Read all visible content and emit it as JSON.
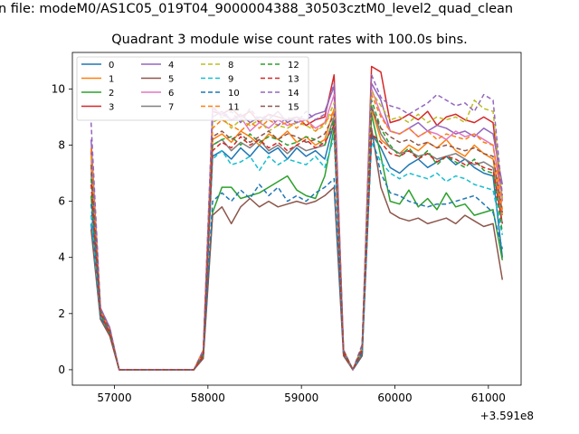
{
  "chart_data": {
    "type": "line",
    "title_file": "n file: modeM0/AS1C05_019T04_9000004388_30503cztM0_level2_quad_clean",
    "title": "Quadrant 3 module wise count rates with 100.0s bins.",
    "xlabel": "",
    "ylabel": "",
    "x_offset_label": "+3.591e8",
    "xlim": [
      56550,
      61350
    ],
    "ylim": [
      -0.55,
      11.3
    ],
    "xticks": [
      57000,
      58000,
      59000,
      60000,
      61000
    ],
    "xtick_labels": [
      "57000",
      "58000",
      "59000",
      "60000",
      "61000"
    ],
    "yticks": [
      0,
      2,
      4,
      6,
      8,
      10
    ],
    "ytick_labels": [
      "0",
      "2",
      "4",
      "6",
      "8",
      "10"
    ],
    "grid": false,
    "legend_position": "top-left",
    "legend_columns": 4,
    "palette": [
      "#1f77b4",
      "#ff7f0e",
      "#2ca02c",
      "#d62728",
      "#9467bd",
      "#8c564b",
      "#e377c2",
      "#7f7f7f",
      "#bcbd22",
      "#17becf"
    ],
    "x": [
      56750,
      56850,
      56950,
      57050,
      57150,
      57250,
      57350,
      57450,
      57550,
      57650,
      57750,
      57850,
      57950,
      58050,
      58150,
      58250,
      58350,
      58450,
      58550,
      58650,
      58750,
      58850,
      58950,
      59050,
      59150,
      59250,
      59350,
      59450,
      59550,
      59650,
      59750,
      59850,
      59950,
      60050,
      60150,
      60250,
      60350,
      60450,
      60550,
      60650,
      60750,
      60850,
      60950,
      61050,
      61150
    ],
    "series": [
      {
        "name": "0",
        "values": [
          5.2,
          2.0,
          1.3,
          0,
          0,
          0,
          0,
          0,
          0,
          0,
          0,
          0,
          0.5,
          7.6,
          7.8,
          7.5,
          7.9,
          7.6,
          8.0,
          7.7,
          7.9,
          7.5,
          7.9,
          7.6,
          7.8,
          7.5,
          8.8,
          0.6,
          0,
          0.5,
          8.4,
          7.9,
          7.2,
          7.0,
          7.3,
          7.5,
          7.2,
          7.4,
          7.6,
          7.3,
          7.5,
          7.2,
          7.0,
          6.9,
          4.0
        ]
      },
      {
        "name": "1",
        "values": [
          7.2,
          2.1,
          1.4,
          0,
          0,
          0,
          0,
          0,
          0,
          0,
          0,
          0,
          0.7,
          8.2,
          8.4,
          8.1,
          8.5,
          8.3,
          8.0,
          8.4,
          8.2,
          8.5,
          8.1,
          8.3,
          8.0,
          8.2,
          9.3,
          0.7,
          0,
          0.8,
          9.3,
          8.2,
          7.9,
          7.7,
          8.0,
          7.8,
          8.1,
          7.9,
          8.2,
          7.8,
          7.6,
          8.0,
          7.7,
          7.5,
          5.5
        ]
      },
      {
        "name": "2",
        "values": [
          6.2,
          1.8,
          1.3,
          0,
          0,
          0,
          0,
          0,
          0,
          0,
          0,
          0,
          0.5,
          5.6,
          6.5,
          6.5,
          6.1,
          6.2,
          6.3,
          6.5,
          6.7,
          6.9,
          6.4,
          6.2,
          6.1,
          6.9,
          8.6,
          0.6,
          0,
          0.6,
          9.1,
          7.6,
          6.0,
          5.9,
          6.4,
          5.8,
          6.1,
          5.7,
          6.3,
          5.8,
          5.9,
          5.5,
          5.6,
          5.7,
          3.9
        ]
      },
      {
        "name": "3",
        "values": [
          7.8,
          2.2,
          1.4,
          0,
          0,
          0,
          0,
          0,
          0,
          0,
          0,
          0,
          0.6,
          9.2,
          9.1,
          9.3,
          9.0,
          9.2,
          8.8,
          9.1,
          9.0,
          8.9,
          9.0,
          8.7,
          8.9,
          9.0,
          10.5,
          0.7,
          0,
          0.8,
          10.8,
          10.6,
          8.8,
          8.9,
          9.1,
          8.9,
          9.2,
          8.7,
          9.0,
          9.1,
          8.9,
          8.8,
          9.0,
          8.8,
          6.0
        ]
      },
      {
        "name": "4",
        "values": [
          8.2,
          2.2,
          1.5,
          0,
          0,
          0,
          0,
          0,
          0,
          0,
          0,
          0,
          0.6,
          9.0,
          9.2,
          8.9,
          9.1,
          8.8,
          9.0,
          8.9,
          9.2,
          8.8,
          9.0,
          8.9,
          9.1,
          9.2,
          10.1,
          0.7,
          0,
          0.8,
          10.2,
          9.6,
          8.5,
          8.4,
          8.6,
          8.8,
          8.5,
          8.7,
          8.6,
          8.4,
          8.5,
          8.3,
          8.6,
          8.4,
          6.6
        ]
      },
      {
        "name": "5",
        "values": [
          5.0,
          1.8,
          1.2,
          0,
          0,
          0,
          0,
          0,
          0,
          0,
          0,
          0,
          0.4,
          5.5,
          5.8,
          5.2,
          5.8,
          6.1,
          5.8,
          6.0,
          5.8,
          5.9,
          6.0,
          5.9,
          6.0,
          6.2,
          6.5,
          0.5,
          0,
          0.5,
          8.6,
          6.5,
          5.6,
          5.4,
          5.3,
          5.4,
          5.2,
          5.3,
          5.4,
          5.2,
          5.5,
          5.3,
          5.1,
          5.2,
          3.2
        ]
      },
      {
        "name": "6",
        "values": [
          7.5,
          2.0,
          1.4,
          0,
          0,
          0,
          0,
          0,
          0,
          0,
          0,
          0,
          0.6,
          9.3,
          9.1,
          8.9,
          9.0,
          8.5,
          8.8,
          8.6,
          8.9,
          8.7,
          8.8,
          8.9,
          8.6,
          8.8,
          9.8,
          0.6,
          0,
          0.7,
          10.0,
          9.1,
          8.5,
          8.4,
          8.6,
          8.3,
          8.5,
          8.4,
          8.2,
          8.5,
          8.3,
          8.4,
          8.2,
          8.0,
          6.0
        ]
      },
      {
        "name": "7",
        "values": [
          7.0,
          2.0,
          1.4,
          0,
          0,
          0,
          0,
          0,
          0,
          0,
          0,
          0,
          0.5,
          8.0,
          8.2,
          7.8,
          8.1,
          7.9,
          8.2,
          7.8,
          8.0,
          7.7,
          8.0,
          7.8,
          7.9,
          8.0,
          9.0,
          0.6,
          0,
          0.7,
          9.4,
          8.4,
          7.9,
          7.7,
          7.8,
          7.6,
          7.7,
          7.5,
          7.6,
          7.7,
          7.5,
          7.3,
          7.4,
          7.2,
          5.2
        ]
      },
      {
        "name": "8",
        "values": [
          7.6,
          2.1,
          1.4,
          0,
          0,
          0,
          0,
          0,
          0,
          0,
          0,
          0,
          0.6,
          8.8,
          9.0,
          8.6,
          8.9,
          8.7,
          8.9,
          8.5,
          8.7,
          8.6,
          8.8,
          8.7,
          8.5,
          8.7,
          9.5,
          0.7,
          0,
          0.8,
          9.9,
          9.4,
          8.9,
          9.0,
          8.8,
          9.1,
          8.8,
          9.0,
          8.9,
          9.0,
          8.8,
          9.6,
          9.3,
          9.2,
          6.1
        ]
      },
      {
        "name": "9",
        "values": [
          5.5,
          1.9,
          1.3,
          0,
          0,
          0,
          0,
          0,
          0,
          0,
          0,
          0,
          0.5,
          7.5,
          7.8,
          7.3,
          7.4,
          7.6,
          7.1,
          7.6,
          7.3,
          7.5,
          7.4,
          7.3,
          7.6,
          7.2,
          8.3,
          0.6,
          0,
          0.6,
          8.1,
          7.4,
          7.0,
          6.8,
          7.0,
          6.9,
          6.8,
          7.0,
          6.7,
          6.9,
          6.8,
          6.6,
          6.5,
          6.4,
          4.8
        ]
      },
      {
        "name": "10",
        "values": [
          5.9,
          1.9,
          1.3,
          0,
          0,
          0,
          0,
          0,
          0,
          0,
          0,
          0,
          0.5,
          6.0,
          6.3,
          6.0,
          6.4,
          6.1,
          6.6,
          6.2,
          6.5,
          6.0,
          6.2,
          6.0,
          6.3,
          6.5,
          6.8,
          0.6,
          0,
          0.6,
          8.4,
          7.0,
          6.3,
          6.2,
          6.0,
          5.9,
          5.8,
          5.9,
          5.9,
          6.0,
          6.1,
          6.2,
          5.9,
          5.6,
          4.3
        ]
      },
      {
        "name": "11",
        "values": [
          7.9,
          2.1,
          1.4,
          0,
          0,
          0,
          0,
          0,
          0,
          0,
          0,
          0,
          0.7,
          8.6,
          8.9,
          8.7,
          8.5,
          8.8,
          8.6,
          8.9,
          8.7,
          8.8,
          8.6,
          8.9,
          8.5,
          8.8,
          9.2,
          0.7,
          0,
          0.8,
          9.8,
          9.0,
          8.5,
          8.4,
          8.6,
          8.3,
          8.5,
          8.2,
          8.4,
          8.3,
          8.2,
          8.4,
          8.1,
          8.0,
          5.7
        ]
      },
      {
        "name": "12",
        "values": [
          6.8,
          2.0,
          1.3,
          0,
          0,
          0,
          0,
          0,
          0,
          0,
          0,
          0,
          0.5,
          8.0,
          8.2,
          8.3,
          8.0,
          8.4,
          8.1,
          8.3,
          8.2,
          8.0,
          8.1,
          8.3,
          8.2,
          8.0,
          8.9,
          0.6,
          0,
          0.7,
          9.6,
          8.6,
          8.0,
          7.6,
          7.9,
          7.5,
          7.8,
          7.3,
          7.6,
          7.4,
          7.2,
          7.5,
          7.1,
          7.0,
          4.9
        ]
      },
      {
        "name": "13",
        "values": [
          6.6,
          2.0,
          1.3,
          0,
          0,
          0,
          0,
          0,
          0,
          0,
          0,
          0,
          0.5,
          7.8,
          8.1,
          7.9,
          8.3,
          8.0,
          8.2,
          7.9,
          8.1,
          7.8,
          8.0,
          8.2,
          7.9,
          8.1,
          8.7,
          0.6,
          0,
          0.7,
          8.4,
          8.1,
          7.7,
          7.6,
          7.8,
          7.5,
          7.7,
          7.4,
          7.6,
          7.5,
          7.3,
          7.4,
          7.2,
          7.1,
          5.2
        ]
      },
      {
        "name": "14",
        "values": [
          8.8,
          2.2,
          1.5,
          0,
          0,
          0,
          0,
          0,
          0,
          0,
          0,
          0,
          0.7,
          9.4,
          9.0,
          9.2,
          8.8,
          9.3,
          8.9,
          9.1,
          8.7,
          9.0,
          8.8,
          9.2,
          8.9,
          9.1,
          10.2,
          0.7,
          0,
          0.9,
          10.5,
          9.7,
          9.4,
          9.3,
          9.1,
          9.3,
          9.5,
          9.8,
          9.6,
          9.4,
          9.5,
          9.2,
          9.8,
          9.6,
          6.2
        ]
      },
      {
        "name": "15",
        "values": [
          7.3,
          2.1,
          1.4,
          0,
          0,
          0,
          0,
          0,
          0,
          0,
          0,
          0,
          0.6,
          8.3,
          8.5,
          8.2,
          8.4,
          8.1,
          8.3,
          8.5,
          8.2,
          8.4,
          8.3,
          8.1,
          8.2,
          8.4,
          9.1,
          0.7,
          0,
          0.8,
          9.3,
          8.6,
          8.3,
          8.1,
          8.2,
          8.0,
          8.1,
          7.9,
          8.0,
          7.9,
          7.8,
          7.9,
          7.7,
          7.6,
          5.6
        ]
      }
    ]
  }
}
